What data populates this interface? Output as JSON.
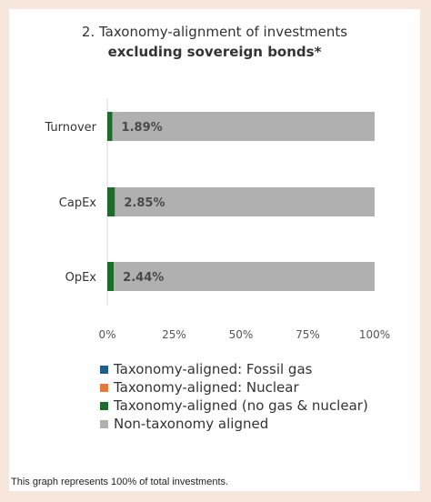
{
  "title_line1": "2. Taxonomy-alignment of investments",
  "title_line2": "excluding sovereign bonds*",
  "footnote": "This graph represents 100% of total investments.",
  "colors": {
    "fossil_gas": "#1f5f8b",
    "nuclear": "#e5793b",
    "aligned": "#1e6b2e",
    "non_aligned": "#b0b0b0"
  },
  "chart_data": {
    "type": "bar",
    "orientation": "horizontal",
    "stacked": true,
    "categories": [
      "Turnover",
      "CapEx",
      "OpEx"
    ],
    "xlim": [
      0,
      100
    ],
    "x_ticks": [
      "0%",
      "25%",
      "50%",
      "75%",
      "100%"
    ],
    "series": [
      {
        "name": "Taxonomy-aligned: Fossil gas",
        "values": [
          0,
          0,
          0
        ]
      },
      {
        "name": "Taxonomy-aligned: Nuclear",
        "values": [
          0,
          0,
          0
        ]
      },
      {
        "name": "Taxonomy-aligned (no gas & nuclear)",
        "values": [
          1.89,
          2.85,
          2.44
        ]
      },
      {
        "name": "Non-taxonomy aligned",
        "values": [
          98.11,
          97.15,
          97.56
        ]
      }
    ],
    "data_labels": [
      "1.89%",
      "2.85%",
      "2.44%"
    ],
    "legend": "bottom"
  }
}
